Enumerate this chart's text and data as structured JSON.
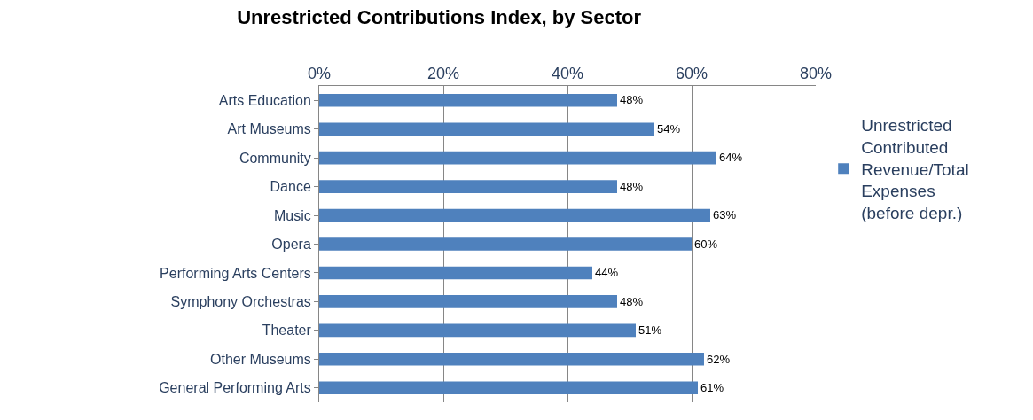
{
  "chart_data": {
    "type": "bar",
    "orientation": "horizontal",
    "title": "Unrestricted Contributions Index, by Sector",
    "categories": [
      "Arts Education",
      "Art Museums",
      "Community",
      "Dance",
      "Music",
      "Opera",
      "Performing Arts Centers",
      "Symphony Orchestras",
      "Theater",
      "Other Museums",
      "General Performing Arts"
    ],
    "series": [
      {
        "name": "Unrestricted Contributed Revenue/Total Expenses (before depr.)",
        "color": "#4f81bd",
        "values": [
          48,
          54,
          64,
          48,
          63,
          60,
          44,
          48,
          51,
          62,
          61
        ],
        "value_labels": [
          "48%",
          "54%",
          "64%",
          "48%",
          "63%",
          "60%",
          "44%",
          "48%",
          "51%",
          "62%",
          "61%"
        ]
      }
    ],
    "xlim": [
      0,
      80
    ],
    "xticks": [
      {
        "value": 0,
        "label": "0%"
      },
      {
        "value": 20,
        "label": "20%"
      },
      {
        "value": 40,
        "label": "40%"
      },
      {
        "value": 60,
        "label": "60%"
      },
      {
        "value": 80,
        "label": "80%"
      }
    ],
    "grid": "x",
    "legend": "right"
  }
}
